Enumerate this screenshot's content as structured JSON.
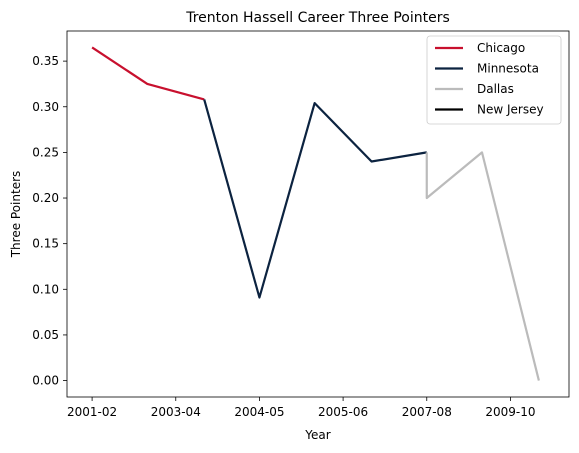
{
  "chart_data": {
    "type": "line",
    "title": "Trenton Hassell Career Three Pointers",
    "xlabel": "Year",
    "ylabel": "Three Pointers",
    "x_ticks": [
      "2001-02",
      "2003-04",
      "2004-05",
      "2005-06",
      "2007-08",
      "2009-10"
    ],
    "y_ticks": [
      "0.00",
      "0.05",
      "0.10",
      "0.15",
      "0.20",
      "0.25",
      "0.30",
      "0.35"
    ],
    "ylim": [
      -0.018,
      0.383
    ],
    "xlim": [
      -0.15,
      2.85
    ],
    "grid": false,
    "legend_position": "top-right",
    "series": [
      {
        "name": "Chicago",
        "color": "#C8102E",
        "x": [
          0.0,
          0.33,
          0.67
        ],
        "y": [
          0.365,
          0.325,
          0.308
        ]
      },
      {
        "name": "Minnesota",
        "color": "#0C2340",
        "x": [
          0.67,
          1.0,
          1.33,
          1.67,
          2.0
        ],
        "y": [
          0.308,
          0.091,
          0.304,
          0.24,
          0.25
        ]
      },
      {
        "name": "Dallas",
        "color": "#BBBBBB",
        "x": [
          2.0,
          2.0,
          2.33,
          2.67
        ],
        "y": [
          0.25,
          0.2,
          0.25,
          0.0
        ]
      },
      {
        "name": "New Jersey",
        "color": "#000000",
        "x": [],
        "y": []
      }
    ]
  }
}
